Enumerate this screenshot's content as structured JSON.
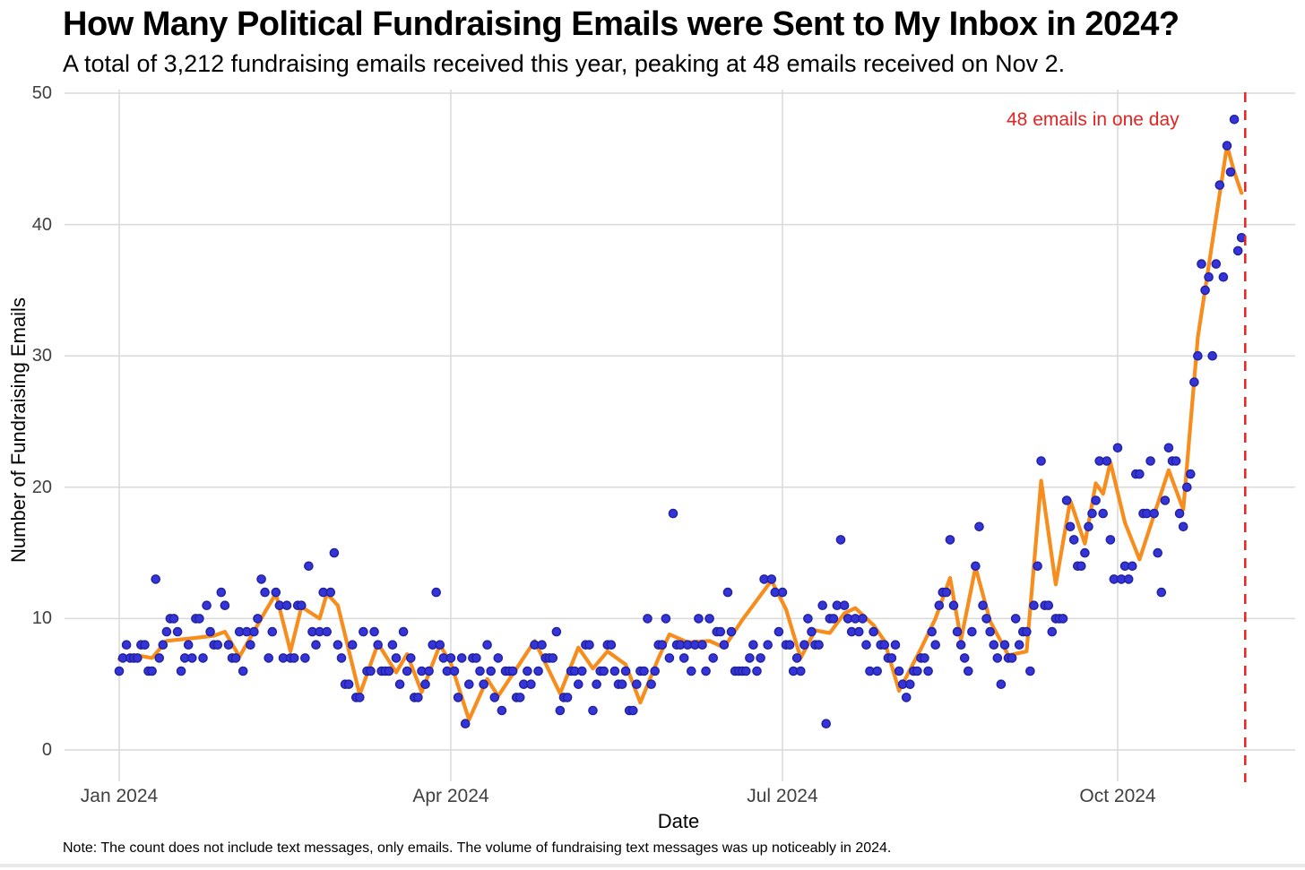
{
  "header": {
    "title": "How Many Political Fundraising Emails were Sent to My Inbox in 2024?",
    "subtitle": "A total of 3,212 fundraising emails received this year, peaking at 48 emails received on Nov 2."
  },
  "annotation": {
    "text": "48 emails in one day",
    "color": "#e52421"
  },
  "footer": {
    "note": "Note: The count does not include text messages, only emails. The volume of fundraising text messages was up noticeably in 2024."
  },
  "chart_data": {
    "type": "scatter",
    "title": "How Many Political Fundraising Emails were Sent to My Inbox in 2024?",
    "xlabel": "Date",
    "ylabel": "Number of Fundraising Emails",
    "ylim": [
      0,
      50
    ],
    "grid": true,
    "legend": false,
    "y_ticks": [
      0,
      10,
      20,
      30,
      40,
      50
    ],
    "x_ticks": [
      {
        "label": "Jan 2024",
        "day": 0
      },
      {
        "label": "Apr 2024",
        "day": 91
      },
      {
        "label": "Jul 2024",
        "day": 182
      },
      {
        "label": "Oct 2024",
        "day": 274
      }
    ],
    "start_date": "2024-01-01",
    "end_date": "2024-11-04",
    "total_emails": 3212,
    "peak": {
      "date": "2024-11-02",
      "value": 48
    },
    "event_line": {
      "date": "2024-11-05",
      "day_index": 309,
      "style": "dashed"
    },
    "daily_values": [
      6,
      7,
      8,
      7,
      7,
      7,
      8,
      8,
      6,
      6,
      13,
      7,
      8,
      9,
      10,
      10,
      9,
      6,
      7,
      8,
      7,
      10,
      10,
      7,
      11,
      9,
      8,
      8,
      12,
      11,
      8,
      7,
      7,
      9,
      6,
      9,
      8,
      9,
      10,
      13,
      12,
      7,
      9,
      12,
      11,
      7,
      11,
      7,
      7,
      11,
      11,
      7,
      14,
      9,
      8,
      9,
      12,
      9,
      12,
      15,
      8,
      7,
      5,
      5,
      8,
      4,
      4,
      9,
      6,
      6,
      9,
      8,
      6,
      6,
      6,
      8,
      7,
      5,
      9,
      6,
      7,
      4,
      4,
      6,
      5,
      6,
      8,
      12,
      8,
      7,
      6,
      7,
      6,
      4,
      7,
      2,
      5,
      7,
      7,
      6,
      5,
      8,
      6,
      4,
      7,
      3,
      6,
      6,
      6,
      4,
      4,
      5,
      6,
      5,
      8,
      6,
      8,
      7,
      7,
      7,
      9,
      3,
      4,
      4,
      6,
      6,
      5,
      6,
      8,
      8,
      3,
      5,
      6,
      6,
      8,
      8,
      6,
      5,
      5,
      6,
      3,
      3,
      5,
      6,
      6,
      10,
      5,
      6,
      8,
      8,
      10,
      7,
      18,
      8,
      8,
      7,
      8,
      6,
      8,
      10,
      8,
      6,
      10,
      7,
      9,
      9,
      8,
      12,
      9,
      6,
      6,
      6,
      6,
      7,
      8,
      6,
      7,
      13,
      8,
      13,
      12,
      9,
      12,
      8,
      8,
      6,
      7,
      6,
      8,
      10,
      9,
      8,
      8,
      11,
      2,
      10,
      10,
      11,
      16,
      11,
      10,
      9,
      10,
      9,
      10,
      8,
      6,
      9,
      6,
      8,
      8,
      7,
      7,
      8,
      6,
      5,
      4,
      5,
      6,
      6,
      7,
      7,
      6,
      9,
      8,
      11,
      12,
      12,
      16,
      11,
      9,
      8,
      7,
      6,
      9,
      14,
      17,
      11,
      10,
      9,
      8,
      7,
      5,
      8,
      7,
      7,
      10,
      8,
      9,
      9,
      6,
      11,
      14,
      22,
      11,
      11,
      9,
      10,
      10,
      10,
      19,
      17,
      16,
      14,
      14,
      15,
      17,
      18,
      19,
      22,
      18,
      22,
      16,
      13,
      23,
      13,
      14,
      13,
      14,
      21,
      21,
      18,
      18,
      22,
      18,
      15,
      12,
      19,
      23,
      22,
      22,
      18,
      17,
      20,
      21,
      28,
      30,
      37,
      35,
      36,
      30,
      37,
      43,
      36,
      46,
      44,
      48,
      38,
      39
    ],
    "trend": [
      [
        0,
        6.9
      ],
      [
        5,
        7.2
      ],
      [
        9,
        7.0
      ],
      [
        13,
        8.3
      ],
      [
        20,
        8.5
      ],
      [
        26,
        8.7
      ],
      [
        29,
        9.0
      ],
      [
        33,
        7.1
      ],
      [
        40,
        10.5
      ],
      [
        43,
        11.9
      ],
      [
        47,
        7.5
      ],
      [
        50,
        10.9
      ],
      [
        55,
        10.0
      ],
      [
        57,
        11.9
      ],
      [
        60,
        11.0
      ],
      [
        66,
        4.2
      ],
      [
        71,
        8.1
      ],
      [
        76,
        5.9
      ],
      [
        79,
        7.3
      ],
      [
        83,
        4.4
      ],
      [
        88,
        8.0
      ],
      [
        91,
        6.6
      ],
      [
        96,
        2.3
      ],
      [
        101,
        5.4
      ],
      [
        104,
        4.1
      ],
      [
        110,
        6.6
      ],
      [
        114,
        8.3
      ],
      [
        121,
        4.3
      ],
      [
        126,
        7.8
      ],
      [
        130,
        6.2
      ],
      [
        134,
        7.5
      ],
      [
        139,
        6.5
      ],
      [
        143,
        3.6
      ],
      [
        148,
        7.0
      ],
      [
        151,
        8.8
      ],
      [
        156,
        8.2
      ],
      [
        162,
        8.3
      ],
      [
        166,
        7.8
      ],
      [
        171,
        9.9
      ],
      [
        179,
        12.9
      ],
      [
        183,
        10.7
      ],
      [
        187,
        7.0
      ],
      [
        191,
        9.1
      ],
      [
        195,
        8.9
      ],
      [
        199,
        10.4
      ],
      [
        202,
        10.8
      ],
      [
        207,
        9.5
      ],
      [
        210,
        8.3
      ],
      [
        214,
        4.5
      ],
      [
        220,
        7.7
      ],
      [
        224,
        10.0
      ],
      [
        228,
        13.1
      ],
      [
        231,
        8.4
      ],
      [
        235,
        13.9
      ],
      [
        239,
        9.8
      ],
      [
        244,
        7.2
      ],
      [
        249,
        7.5
      ],
      [
        253,
        20.5
      ],
      [
        257,
        12.6
      ],
      [
        261,
        19.0
      ],
      [
        265,
        15.7
      ],
      [
        268,
        20.3
      ],
      [
        270,
        19.5
      ],
      [
        272,
        21.9
      ],
      [
        276,
        17.3
      ],
      [
        280,
        14.5
      ],
      [
        288,
        21.3
      ],
      [
        292,
        18.3
      ],
      [
        296,
        31.4
      ],
      [
        300,
        38.7
      ],
      [
        304,
        46.0
      ],
      [
        306,
        44.0
      ],
      [
        308,
        42.4
      ]
    ],
    "colors": {
      "points": "#3434d9",
      "point_stroke": "#22229e",
      "trend": "#f68d1d",
      "grid": "#d9d9d9",
      "event": "#e52421"
    }
  }
}
